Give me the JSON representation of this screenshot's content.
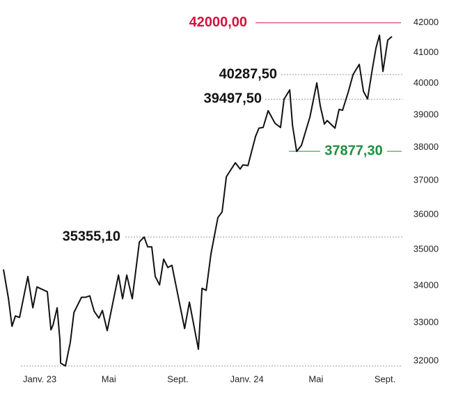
{
  "chart_data": {
    "type": "line",
    "log_scale": true,
    "grid": false,
    "xlim": [
      -2.1,
      20.4
    ],
    "ylim": [
      31700,
      42300
    ],
    "xticks": [
      {
        "value": 0,
        "label": "Janv. 23"
      },
      {
        "value": 4,
        "label": "Mai"
      },
      {
        "value": 8,
        "label": "Sept."
      },
      {
        "value": 12,
        "label": "Janv. 24"
      },
      {
        "value": 16,
        "label": "Mai"
      },
      {
        "value": 20,
        "label": "Sept."
      }
    ],
    "yticks": [
      32000,
      33000,
      34000,
      35000,
      36000,
      37000,
      38000,
      39000,
      40000,
      41000,
      42000
    ],
    "annotations": [
      {
        "value": 42000,
        "label": "42000,00",
        "color": "#d3123e"
      },
      {
        "value": 40287.5,
        "label": "40287,50",
        "color": "#111111"
      },
      {
        "value": 39497.5,
        "label": "39497,50",
        "color": "#111111"
      },
      {
        "value": 37877.3,
        "label": "37877,30",
        "color": "#1e8f3e"
      },
      {
        "value": 35355.1,
        "label": "35355,10",
        "color": "#111111"
      },
      {
        "value": 31875
      }
    ],
    "series": [
      {
        "color": "#111111",
        "x": [
          -2.1,
          -1.81,
          -1.61,
          -1.41,
          -1.17,
          -0.69,
          -0.4,
          -0.16,
          0.44,
          0.65,
          0.77,
          1.01,
          1.17,
          1.21,
          1.49,
          1.77,
          1.98,
          2.42,
          2.66,
          2.9,
          3.15,
          3.43,
          3.63,
          3.91,
          4.56,
          4.8,
          5.04,
          5.36,
          5.77,
          6.05,
          6.25,
          6.49,
          6.69,
          6.94,
          7.18,
          7.42,
          7.66,
          8.39,
          8.67,
          9.19,
          9.4,
          9.64,
          9.92,
          10.32,
          10.56,
          10.81,
          11.33,
          11.61,
          11.77,
          12.06,
          12.5,
          12.7,
          12.94,
          13.23,
          13.63,
          13.95,
          14.15,
          14.48,
          14.64,
          14.88,
          15.16,
          15.65,
          16.05,
          16.25,
          16.49,
          16.65,
          17.1,
          17.34,
          17.54,
          17.86,
          18.15,
          18.51,
          18.75,
          18.99,
          19.27,
          19.48,
          19.68,
          19.88,
          20.16,
          20.4
        ],
        "values": [
          34445,
          33645,
          32906,
          33181,
          33143,
          34252,
          33401,
          33965,
          33833,
          32813,
          32941,
          33401,
          32540,
          31947,
          31875,
          32486,
          33274,
          33684,
          33684,
          33722,
          33310,
          33124,
          33328,
          32794,
          34289,
          33645,
          34289,
          33645,
          35216,
          35355.1,
          35078,
          35078,
          34252,
          34022,
          34733,
          34500,
          34560,
          32848,
          33553,
          32305,
          33929,
          33872,
          34887,
          35914,
          36074,
          37114,
          37530,
          37341,
          37467,
          37446,
          38333,
          38590,
          38611,
          39133,
          38740,
          38611,
          39497.5,
          39795,
          38675,
          37877.3,
          38058,
          38934,
          40019,
          39283,
          38717,
          38826,
          38590,
          39175,
          39150,
          39706,
          40287.5,
          40618,
          39748,
          39506,
          40483,
          41167,
          41581,
          40390,
          41418,
          41540
        ]
      }
    ]
  }
}
